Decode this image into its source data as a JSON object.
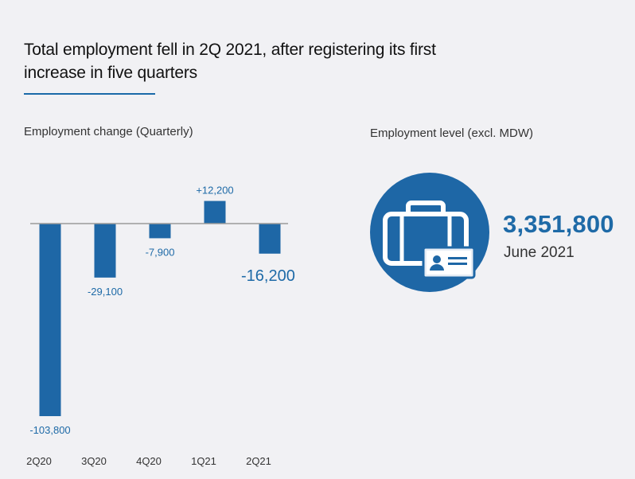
{
  "headline": {
    "line1": "Total employment fell in 2Q 2021, after registering its first",
    "line2": "increase in five quarters"
  },
  "colors": {
    "bar": "#1e67a6",
    "label": "#1e6aa7",
    "axis": "#9a9a9a",
    "rule": "#1a6aa8",
    "icon_circle": "#1e67a6"
  },
  "chart_data": {
    "type": "bar",
    "title": "Employment change (Quarterly)",
    "categories": [
      "2Q20",
      "3Q20",
      "4Q20",
      "1Q21",
      "2Q21"
    ],
    "values": [
      -103800,
      -29100,
      -7900,
      12200,
      -16200
    ],
    "data_labels": [
      "-103,800",
      "-29,100",
      "-7,900",
      "+12,200",
      "-16,200"
    ],
    "highlight_index": 4,
    "xlabel": "",
    "ylabel": "",
    "ylim": [
      -106000,
      15000
    ],
    "grid": false
  },
  "employment_level": {
    "title": "Employment level (excl. MDW)",
    "value": "3,351,800",
    "date": "June 2021",
    "icon": "briefcase-id-card-icon"
  }
}
